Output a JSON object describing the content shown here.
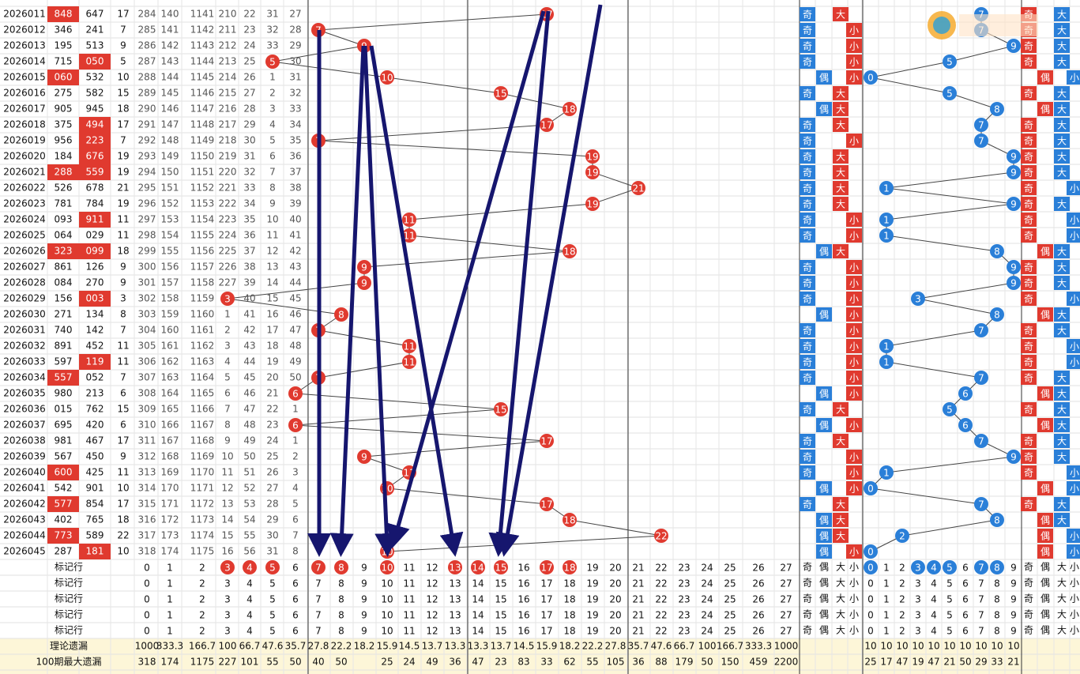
{
  "marker_label": "标记行",
  "theory_label": "理论遗漏",
  "max_label": "100期最大遗漏",
  "sum_columns": [
    0,
    1,
    2,
    3,
    4,
    5,
    6,
    7,
    8,
    9,
    10,
    11,
    12,
    13,
    14,
    15,
    16,
    17,
    18,
    19,
    20,
    21,
    22,
    23,
    24,
    25,
    26,
    27
  ],
  "flag_labels": [
    "奇",
    "偶",
    "大",
    "小"
  ],
  "tail_columns": [
    0,
    1,
    2,
    3,
    4,
    5,
    6,
    7,
    8,
    9
  ],
  "marked_sums": [
    3,
    4,
    5,
    7,
    8,
    10,
    13,
    14,
    15,
    17,
    18
  ],
  "marked_tails": [
    0,
    3,
    4,
    5,
    7,
    8
  ],
  "theory_sums": [
    1000,
    333.3,
    166.7,
    100,
    66.7,
    47.6,
    35.7,
    27.8,
    22.2,
    18.2,
    15.9,
    14.5,
    13.7,
    13.3,
    13.3,
    13.7,
    14.5,
    15.9,
    18.2,
    22.2,
    27.8,
    35.7,
    47.6,
    66.7,
    100,
    166.7,
    333.3,
    1000
  ],
  "theory_tails": [
    10,
    10,
    10,
    10,
    10,
    10,
    10,
    10,
    10,
    10
  ],
  "max_sums": [
    318,
    174,
    1175,
    227,
    101,
    55,
    50,
    40,
    50,
    null,
    25,
    24,
    49,
    36,
    47,
    23,
    83,
    33,
    62,
    55,
    105,
    36,
    88,
    179,
    50,
    150,
    459,
    2200
  ],
  "max_tails": [
    25,
    17,
    47,
    19,
    47,
    21,
    50,
    29,
    33,
    21
  ],
  "rows": [
    {
      "issue": "2026011",
      "a": "848",
      "b": "647",
      "a_red": true,
      "b_red": false,
      "s": 17,
      "omit": [
        284,
        140,
        1141,
        210,
        22,
        31,
        27
      ],
      "sum_flags": [
        "奇",
        "大"
      ],
      "tail": 7,
      "tail_flags": [
        "奇",
        "大"
      ]
    },
    {
      "issue": "2026012",
      "a": "346",
      "b": "241",
      "a_red": false,
      "b_red": false,
      "s": 7,
      "omit": [
        285,
        141,
        1142,
        211,
        23,
        32,
        28
      ],
      "sum_flags": [
        "奇",
        "小"
      ],
      "tail": 7,
      "tail_flags": [
        "奇",
        "大"
      ]
    },
    {
      "issue": "2026013",
      "a": "195",
      "b": "513",
      "a_red": false,
      "b_red": false,
      "s": 9,
      "omit": [
        286,
        142,
        1143,
        212,
        24,
        33,
        29
      ],
      "sum_flags": [
        "奇",
        "小"
      ],
      "tail": 9,
      "tail_flags": [
        "奇",
        "大"
      ]
    },
    {
      "issue": "2026014",
      "a": "715",
      "b": "050",
      "a_red": false,
      "b_red": true,
      "s": 5,
      "omit": [
        287,
        143,
        1144,
        213,
        25,
        null,
        30
      ],
      "sum_flags": [
        "奇",
        "小"
      ],
      "tail": 5,
      "tail_flags": [
        "奇",
        "大"
      ]
    },
    {
      "issue": "2026015",
      "a": "060",
      "b": "532",
      "a_red": true,
      "b_red": false,
      "s": 10,
      "omit": [
        288,
        144,
        1145,
        214,
        26,
        1,
        31
      ],
      "sum_flags": [
        "偶",
        "小"
      ],
      "tail": 0,
      "tail_flags": [
        "偶",
        "小"
      ]
    },
    {
      "issue": "2026016",
      "a": "275",
      "b": "582",
      "a_red": false,
      "b_red": false,
      "s": 15,
      "omit": [
        289,
        145,
        1146,
        215,
        27,
        2,
        32
      ],
      "sum_flags": [
        "奇",
        "大"
      ],
      "tail": 5,
      "tail_flags": [
        "奇",
        "大"
      ]
    },
    {
      "issue": "2026017",
      "a": "905",
      "b": "945",
      "a_red": false,
      "b_red": false,
      "s": 18,
      "omit": [
        290,
        146,
        1147,
        216,
        28,
        3,
        33
      ],
      "sum_flags": [
        "偶",
        "大"
      ],
      "tail": 8,
      "tail_flags": [
        "偶",
        "大"
      ]
    },
    {
      "issue": "2026018",
      "a": "375",
      "b": "494",
      "a_red": false,
      "b_red": true,
      "s": 17,
      "omit": [
        291,
        147,
        1148,
        217,
        29,
        4,
        34
      ],
      "sum_flags": [
        "奇",
        "大"
      ],
      "tail": 7,
      "tail_flags": [
        "奇",
        "大"
      ]
    },
    {
      "issue": "2026019",
      "a": "956",
      "b": "223",
      "a_red": false,
      "b_red": true,
      "s": 7,
      "omit": [
        292,
        148,
        1149,
        218,
        30,
        5,
        35
      ],
      "sum_flags": [
        "奇",
        "小"
      ],
      "tail": 7,
      "tail_flags": [
        "奇",
        "大"
      ]
    },
    {
      "issue": "2026020",
      "a": "184",
      "b": "676",
      "a_red": false,
      "b_red": true,
      "s": 19,
      "omit": [
        293,
        149,
        1150,
        219,
        31,
        6,
        36
      ],
      "sum_flags": [
        "奇",
        "大"
      ],
      "tail": 9,
      "tail_flags": [
        "奇",
        "大"
      ]
    },
    {
      "issue": "2026021",
      "a": "288",
      "b": "559",
      "a_red": true,
      "b_red": true,
      "s": 19,
      "omit": [
        294,
        150,
        1151,
        220,
        32,
        7,
        37
      ],
      "sum_flags": [
        "奇",
        "大"
      ],
      "tail": 9,
      "tail_flags": [
        "奇",
        "大"
      ]
    },
    {
      "issue": "2026022",
      "a": "526",
      "b": "678",
      "a_red": false,
      "b_red": false,
      "s": 21,
      "omit": [
        295,
        151,
        1152,
        221,
        33,
        8,
        38
      ],
      "sum_flags": [
        "奇",
        "大"
      ],
      "tail": 1,
      "tail_flags": [
        "奇",
        "小"
      ]
    },
    {
      "issue": "2026023",
      "a": "781",
      "b": "784",
      "a_red": false,
      "b_red": false,
      "s": 19,
      "omit": [
        296,
        152,
        1153,
        222,
        34,
        9,
        39
      ],
      "sum_flags": [
        "奇",
        "大"
      ],
      "tail": 9,
      "tail_flags": [
        "奇",
        "大"
      ]
    },
    {
      "issue": "2026024",
      "a": "093",
      "b": "911",
      "a_red": false,
      "b_red": true,
      "s": 11,
      "omit": [
        297,
        153,
        1154,
        223,
        35,
        10,
        40
      ],
      "sum_flags": [
        "奇",
        "小"
      ],
      "tail": 1,
      "tail_flags": [
        "奇",
        "小"
      ]
    },
    {
      "issue": "2026025",
      "a": "064",
      "b": "029",
      "a_red": false,
      "b_red": false,
      "s": 11,
      "omit": [
        298,
        154,
        1155,
        224,
        36,
        11,
        41
      ],
      "sum_flags": [
        "奇",
        "小"
      ],
      "tail": 1,
      "tail_flags": [
        "奇",
        "小"
      ]
    },
    {
      "issue": "2026026",
      "a": "323",
      "b": "099",
      "a_red": true,
      "b_red": true,
      "s": 18,
      "omit": [
        299,
        155,
        1156,
        225,
        37,
        12,
        42
      ],
      "sum_flags": [
        "偶",
        "大"
      ],
      "tail": 8,
      "tail_flags": [
        "偶",
        "大"
      ]
    },
    {
      "issue": "2026027",
      "a": "861",
      "b": "126",
      "a_red": false,
      "b_red": false,
      "s": 9,
      "omit": [
        300,
        156,
        1157,
        226,
        38,
        13,
        43
      ],
      "sum_flags": [
        "奇",
        "小"
      ],
      "tail": 9,
      "tail_flags": [
        "奇",
        "大"
      ]
    },
    {
      "issue": "2026028",
      "a": "084",
      "b": "270",
      "a_red": false,
      "b_red": false,
      "s": 9,
      "omit": [
        301,
        157,
        1158,
        227,
        39,
        14,
        44
      ],
      "sum_flags": [
        "奇",
        "小"
      ],
      "tail": 9,
      "tail_flags": [
        "奇",
        "大"
      ]
    },
    {
      "issue": "2026029",
      "a": "156",
      "b": "003",
      "a_red": false,
      "b_red": true,
      "s": 3,
      "omit": [
        302,
        158,
        1159,
        null,
        40,
        15,
        45
      ],
      "sum_flags": [
        "奇",
        "小"
      ],
      "tail": 3,
      "tail_flags": [
        "奇",
        "小"
      ]
    },
    {
      "issue": "2026030",
      "a": "271",
      "b": "134",
      "a_red": false,
      "b_red": false,
      "s": 8,
      "omit": [
        303,
        159,
        1160,
        1,
        41,
        16,
        46
      ],
      "sum_flags": [
        "偶",
        "小"
      ],
      "tail": 8,
      "tail_flags": [
        "偶",
        "大"
      ]
    },
    {
      "issue": "2026031",
      "a": "740",
      "b": "142",
      "a_red": false,
      "b_red": false,
      "s": 7,
      "omit": [
        304,
        160,
        1161,
        2,
        42,
        17,
        47
      ],
      "sum_flags": [
        "奇",
        "小"
      ],
      "tail": 7,
      "tail_flags": [
        "奇",
        "大"
      ]
    },
    {
      "issue": "2026032",
      "a": "891",
      "b": "452",
      "a_red": false,
      "b_red": false,
      "s": 11,
      "omit": [
        305,
        161,
        1162,
        3,
        43,
        18,
        48
      ],
      "sum_flags": [
        "奇",
        "小"
      ],
      "tail": 1,
      "tail_flags": [
        "奇",
        "小"
      ]
    },
    {
      "issue": "2026033",
      "a": "597",
      "b": "119",
      "a_red": false,
      "b_red": true,
      "s": 11,
      "omit": [
        306,
        162,
        1163,
        4,
        44,
        19,
        49
      ],
      "sum_flags": [
        "奇",
        "小"
      ],
      "tail": 1,
      "tail_flags": [
        "奇",
        "小"
      ]
    },
    {
      "issue": "2026034",
      "a": "557",
      "b": "052",
      "a_red": true,
      "b_red": false,
      "s": 7,
      "omit": [
        307,
        163,
        1164,
        5,
        45,
        20,
        50
      ],
      "sum_flags": [
        "奇",
        "小"
      ],
      "tail": 7,
      "tail_flags": [
        "奇",
        "大"
      ]
    },
    {
      "issue": "2026035",
      "a": "980",
      "b": "213",
      "a_red": false,
      "b_red": false,
      "s": 6,
      "omit": [
        308,
        164,
        1165,
        6,
        46,
        21,
        null
      ],
      "sum_flags": [
        "偶",
        "小"
      ],
      "tail": 6,
      "tail_flags": [
        "偶",
        "大"
      ]
    },
    {
      "issue": "2026036",
      "a": "015",
      "b": "762",
      "a_red": false,
      "b_red": false,
      "s": 15,
      "omit": [
        309,
        165,
        1166,
        7,
        47,
        22,
        1
      ],
      "sum_flags": [
        "奇",
        "大"
      ],
      "tail": 5,
      "tail_flags": [
        "奇",
        "大"
      ]
    },
    {
      "issue": "2026037",
      "a": "695",
      "b": "420",
      "a_red": false,
      "b_red": false,
      "s": 6,
      "omit": [
        310,
        166,
        1167,
        8,
        48,
        23,
        null
      ],
      "sum_flags": [
        "偶",
        "小"
      ],
      "tail": 6,
      "tail_flags": [
        "偶",
        "大"
      ]
    },
    {
      "issue": "2026038",
      "a": "981",
      "b": "467",
      "a_red": false,
      "b_red": false,
      "s": 17,
      "omit": [
        311,
        167,
        1168,
        9,
        49,
        24,
        1
      ],
      "sum_flags": [
        "奇",
        "大"
      ],
      "tail": 7,
      "tail_flags": [
        "奇",
        "大"
      ]
    },
    {
      "issue": "2026039",
      "a": "567",
      "b": "450",
      "a_red": false,
      "b_red": false,
      "s": 9,
      "omit": [
        312,
        168,
        1169,
        10,
        50,
        25,
        2
      ],
      "sum_flags": [
        "奇",
        "小"
      ],
      "tail": 9,
      "tail_flags": [
        "奇",
        "大"
      ]
    },
    {
      "issue": "2026040",
      "a": "600",
      "b": "425",
      "a_red": true,
      "b_red": false,
      "s": 11,
      "omit": [
        313,
        169,
        1170,
        11,
        51,
        26,
        3
      ],
      "sum_flags": [
        "奇",
        "小"
      ],
      "tail": 1,
      "tail_flags": [
        "奇",
        "小"
      ]
    },
    {
      "issue": "2026041",
      "a": "542",
      "b": "901",
      "a_red": false,
      "b_red": false,
      "s": 10,
      "omit": [
        314,
        170,
        1171,
        12,
        52,
        27,
        4
      ],
      "sum_flags": [
        "偶",
        "小"
      ],
      "tail": 0,
      "tail_flags": [
        "偶",
        "小"
      ]
    },
    {
      "issue": "2026042",
      "a": "577",
      "b": "854",
      "a_red": true,
      "b_red": false,
      "s": 17,
      "omit": [
        315,
        171,
        1172,
        13,
        53,
        28,
        5
      ],
      "sum_flags": [
        "奇",
        "大"
      ],
      "tail": 7,
      "tail_flags": [
        "奇",
        "大"
      ]
    },
    {
      "issue": "2026043",
      "a": "402",
      "b": "765",
      "a_red": false,
      "b_red": false,
      "s": 18,
      "omit": [
        316,
        172,
        1173,
        14,
        54,
        29,
        6
      ],
      "sum_flags": [
        "偶",
        "大"
      ],
      "tail": 8,
      "tail_flags": [
        "偶",
        "大"
      ]
    },
    {
      "issue": "2026044",
      "a": "773",
      "b": "589",
      "a_red": true,
      "b_red": false,
      "s": 22,
      "omit": [
        317,
        173,
        1174,
        15,
        55,
        30,
        7
      ],
      "sum_flags": [
        "偶",
        "大"
      ],
      "tail": 2,
      "tail_flags": [
        "偶",
        "小"
      ]
    },
    {
      "issue": "2026045",
      "a": "287",
      "b": "181",
      "a_red": false,
      "b_red": true,
      "s": 10,
      "omit": [
        318,
        174,
        1175,
        16,
        56,
        31,
        8
      ],
      "sum_flags": [
        "偶",
        "小"
      ],
      "tail": 0,
      "tail_flags": [
        "偶",
        "小"
      ]
    }
  ]
}
